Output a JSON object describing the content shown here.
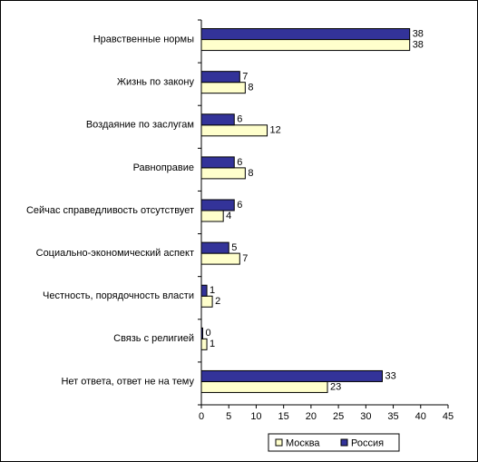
{
  "chart_data": {
    "type": "bar",
    "orientation": "horizontal",
    "categories": [
      "Нравственные нормы",
      "Жизнь по закону",
      "Воздаяние по заслугам",
      "Равноправие",
      "Сейчас справедливость отсутствует",
      "Социально-экономический аспект",
      "Честность, порядочность власти",
      "Связь с религией",
      "Нет ответа, ответ не на тему"
    ],
    "series": [
      {
        "name": "Москва",
        "color": "#ffffcc",
        "values": [
          38,
          8,
          12,
          8,
          4,
          7,
          2,
          1,
          23
        ]
      },
      {
        "name": "Россия",
        "color": "#333399",
        "values": [
          38,
          7,
          6,
          6,
          6,
          5,
          1,
          0,
          33
        ]
      }
    ],
    "xlim": [
      0,
      45
    ],
    "xticks": [
      0,
      5,
      10,
      15,
      20,
      25,
      30,
      35,
      40,
      45
    ],
    "grid": false,
    "legend": "bottom"
  }
}
